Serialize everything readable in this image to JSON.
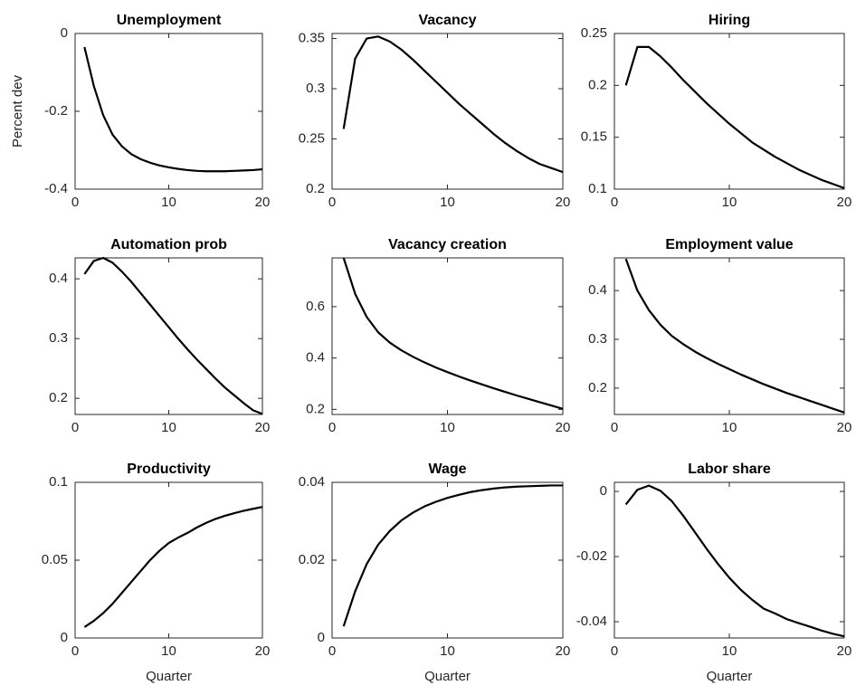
{
  "chart_data": [
    {
      "type": "line",
      "title": "Unemployment",
      "ylabel": "Percent dev",
      "color": "#000000",
      "x": [
        1,
        2,
        3,
        4,
        5,
        6,
        7,
        8,
        9,
        10,
        11,
        12,
        13,
        14,
        15,
        16,
        17,
        18,
        19,
        20
      ],
      "values": [
        -0.035,
        -0.135,
        -0.21,
        -0.26,
        -0.29,
        -0.31,
        -0.323,
        -0.332,
        -0.339,
        -0.344,
        -0.348,
        -0.351,
        -0.353,
        -0.354,
        -0.354,
        -0.354,
        -0.353,
        -0.352,
        -0.351,
        -0.349
      ],
      "xlim": [
        0,
        20
      ],
      "xticks": [
        0,
        10,
        20
      ],
      "ylim": [
        -0.4,
        0
      ],
      "yticks": [
        -0.4,
        -0.2,
        0
      ]
    },
    {
      "type": "line",
      "title": "Vacancy",
      "color": "#000000",
      "x": [
        1,
        2,
        3,
        4,
        5,
        6,
        7,
        8,
        9,
        10,
        11,
        12,
        13,
        14,
        15,
        16,
        17,
        18,
        19,
        20
      ],
      "values": [
        0.26,
        0.33,
        0.35,
        0.352,
        0.347,
        0.339,
        0.329,
        0.318,
        0.307,
        0.296,
        0.285,
        0.275,
        0.265,
        0.255,
        0.246,
        0.238,
        0.231,
        0.225,
        0.221,
        0.217
      ],
      "xlim": [
        0,
        20
      ],
      "xticks": [
        0,
        10,
        20
      ],
      "ylim": [
        0.2,
        0.355
      ],
      "yticks": [
        0.2,
        0.25,
        0.3,
        0.35
      ]
    },
    {
      "type": "line",
      "title": "Hiring",
      "color": "#000000",
      "x": [
        1,
        2,
        3,
        4,
        5,
        6,
        7,
        8,
        9,
        10,
        11,
        12,
        13,
        14,
        15,
        16,
        17,
        18,
        19,
        20
      ],
      "values": [
        0.2,
        0.237,
        0.237,
        0.228,
        0.217,
        0.205,
        0.194,
        0.183,
        0.173,
        0.163,
        0.154,
        0.145,
        0.138,
        0.131,
        0.125,
        0.119,
        0.114,
        0.109,
        0.105,
        0.101
      ],
      "xlim": [
        0,
        20
      ],
      "xticks": [
        0,
        10,
        20
      ],
      "ylim": [
        0.1,
        0.25
      ],
      "yticks": [
        0.1,
        0.15,
        0.2,
        0.25
      ]
    },
    {
      "type": "line",
      "title": "Automation prob",
      "color": "#000000",
      "x": [
        1,
        2,
        3,
        4,
        5,
        6,
        7,
        8,
        9,
        10,
        11,
        12,
        13,
        14,
        15,
        16,
        17,
        18,
        19,
        20
      ],
      "values": [
        0.408,
        0.43,
        0.435,
        0.427,
        0.412,
        0.395,
        0.376,
        0.357,
        0.338,
        0.319,
        0.3,
        0.282,
        0.265,
        0.249,
        0.233,
        0.218,
        0.205,
        0.192,
        0.18,
        0.174
      ],
      "xlim": [
        0,
        20
      ],
      "xticks": [
        0,
        10,
        20
      ],
      "ylim": [
        0.173,
        0.435
      ],
      "yticks": [
        0.2,
        0.3,
        0.4
      ]
    },
    {
      "type": "line",
      "title": "Vacancy creation",
      "color": "#000000",
      "x": [
        1,
        2,
        3,
        4,
        5,
        6,
        7,
        8,
        9,
        10,
        11,
        12,
        13,
        14,
        15,
        16,
        17,
        18,
        19,
        20
      ],
      "values": [
        0.79,
        0.65,
        0.56,
        0.5,
        0.46,
        0.43,
        0.405,
        0.383,
        0.363,
        0.345,
        0.328,
        0.312,
        0.297,
        0.282,
        0.268,
        0.254,
        0.241,
        0.228,
        0.215,
        0.202
      ],
      "xlim": [
        0,
        20
      ],
      "xticks": [
        0,
        10,
        20
      ],
      "ylim": [
        0.18,
        0.79
      ],
      "yticks": [
        0.2,
        0.4,
        0.6
      ]
    },
    {
      "type": "line",
      "title": "Employment value",
      "color": "#000000",
      "x": [
        1,
        2,
        3,
        4,
        5,
        6,
        7,
        8,
        9,
        10,
        11,
        12,
        13,
        14,
        15,
        16,
        17,
        18,
        19,
        20
      ],
      "values": [
        0.465,
        0.4,
        0.36,
        0.33,
        0.307,
        0.29,
        0.275,
        0.262,
        0.25,
        0.239,
        0.228,
        0.218,
        0.208,
        0.199,
        0.19,
        0.182,
        0.174,
        0.166,
        0.158,
        0.15
      ],
      "xlim": [
        0,
        20
      ],
      "xticks": [
        0,
        10,
        20
      ],
      "ylim": [
        0.146,
        0.467
      ],
      "yticks": [
        0.2,
        0.3,
        0.4
      ]
    },
    {
      "type": "line",
      "title": "Productivity",
      "xlabel": "Quarter",
      "color": "#000000",
      "x": [
        1,
        2,
        3,
        4,
        5,
        6,
        7,
        8,
        9,
        10,
        11,
        12,
        13,
        14,
        15,
        16,
        17,
        18,
        19,
        20
      ],
      "values": [
        0.007,
        0.011,
        0.016,
        0.022,
        0.029,
        0.036,
        0.043,
        0.05,
        0.056,
        0.061,
        0.0645,
        0.0675,
        0.071,
        0.074,
        0.0765,
        0.0785,
        0.0802,
        0.0817,
        0.083,
        0.0842
      ],
      "xlim": [
        0,
        20
      ],
      "xticks": [
        0,
        10,
        20
      ],
      "ylim": [
        0,
        0.1
      ],
      "yticks": [
        0,
        0.05,
        0.1
      ]
    },
    {
      "type": "line",
      "title": "Wage",
      "xlabel": "Quarter",
      "color": "#000000",
      "x": [
        1,
        2,
        3,
        4,
        5,
        6,
        7,
        8,
        9,
        10,
        11,
        12,
        13,
        14,
        15,
        16,
        17,
        18,
        19,
        20
      ],
      "values": [
        0.003,
        0.012,
        0.019,
        0.024,
        0.0275,
        0.0302,
        0.0322,
        0.0338,
        0.035,
        0.036,
        0.0368,
        0.0375,
        0.038,
        0.0384,
        0.0387,
        0.0389,
        0.039,
        0.0391,
        0.0392,
        0.0392
      ],
      "xlim": [
        0,
        20
      ],
      "xticks": [
        0,
        10,
        20
      ],
      "ylim": [
        0,
        0.04
      ],
      "yticks": [
        0,
        0.02,
        0.04
      ]
    },
    {
      "type": "line",
      "title": "Labor share",
      "xlabel": "Quarter",
      "color": "#000000",
      "x": [
        1,
        2,
        3,
        4,
        5,
        6,
        7,
        8,
        9,
        10,
        11,
        12,
        13,
        14,
        15,
        16,
        17,
        18,
        19,
        20
      ],
      "values": [
        -0.004,
        0.0005,
        0.0018,
        0.0002,
        -0.003,
        -0.0075,
        -0.0125,
        -0.0175,
        -0.0222,
        -0.0265,
        -0.0302,
        -0.0333,
        -0.036,
        -0.0375,
        -0.0392,
        -0.0404,
        -0.0415,
        -0.0427,
        -0.0437,
        -0.0445
      ],
      "xlim": [
        0,
        20
      ],
      "xticks": [
        0,
        10,
        20
      ],
      "ylim": [
        -0.045,
        0.0028
      ],
      "yticks": [
        -0.04,
        -0.02,
        0
      ]
    }
  ]
}
